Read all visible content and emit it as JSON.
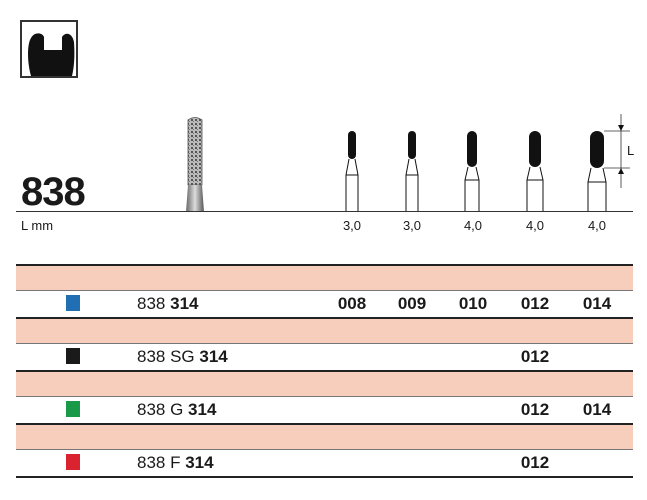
{
  "header": {
    "model": "838",
    "length_label": "L mm",
    "dimension_label": "L"
  },
  "shape_icon": "tooth-cavity-icon",
  "lengths": [
    "3,0",
    "3,0",
    "4,0",
    "4,0",
    "4,0"
  ],
  "products": [
    {
      "prefix": "838",
      "suffix": "314",
      "color": "#1f6fb2",
      "sizes": [
        "008",
        "009",
        "010",
        "012",
        "014"
      ]
    },
    {
      "prefix": "838 SG",
      "suffix": "314",
      "color": "#1a1a1a",
      "sizes": [
        "",
        "",
        "",
        "012",
        ""
      ]
    },
    {
      "prefix": "838 G",
      "suffix": "314",
      "color": "#1a9a48",
      "sizes": [
        "",
        "",
        "",
        "012",
        "014"
      ]
    },
    {
      "prefix": "838 F",
      "suffix": "314",
      "color": "#d9232e",
      "sizes": [
        "",
        "",
        "",
        "012",
        ""
      ]
    }
  ],
  "band_color": "#f7cdbb"
}
